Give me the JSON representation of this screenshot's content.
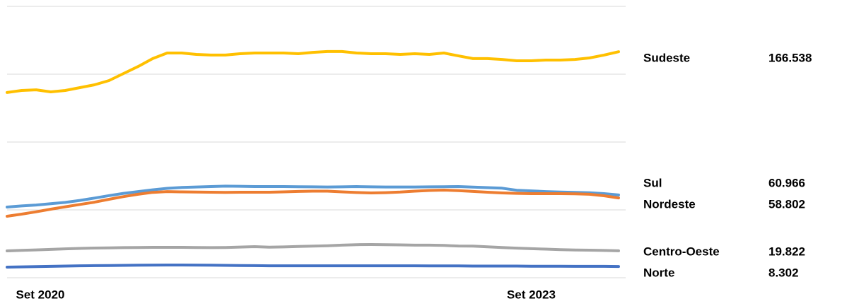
{
  "chart_data": {
    "type": "line",
    "categories": [
      "Set 2020",
      null,
      null,
      null,
      null,
      null,
      null,
      null,
      null,
      null,
      null,
      null,
      null,
      null,
      null,
      null,
      null,
      null,
      null,
      null,
      null,
      null,
      null,
      null,
      null,
      null,
      null,
      null,
      null,
      null,
      null,
      null,
      null,
      null,
      null,
      null,
      "Set 2023",
      null,
      null,
      null,
      null,
      null,
      null
    ],
    "ylim": [
      0,
      200
    ],
    "yticks": [
      0,
      50,
      100,
      150,
      200
    ],
    "grid": true,
    "series": [
      {
        "name": "Sudeste",
        "color": "#ffc000",
        "values": [
          136.5,
          138.0,
          138.5,
          137.0,
          138.0,
          140.1,
          142.2,
          145.3,
          150.5,
          155.7,
          161.5,
          165.6,
          165.6,
          164.6,
          164.1,
          164.1,
          165.1,
          165.6,
          165.6,
          165.6,
          165.1,
          166.1,
          166.7,
          166.7,
          165.6,
          165.1,
          165.1,
          164.6,
          165.1,
          164.6,
          165.6,
          163.5,
          161.5,
          161.5,
          160.9,
          159.9,
          159.9,
          160.4,
          160.4,
          160.9,
          162.0,
          164.1,
          166.538
        ]
      },
      {
        "name": "Sul",
        "color": "#5b9bd5",
        "values": [
          52.1,
          52.9,
          53.6,
          54.6,
          55.5,
          57.0,
          58.7,
          60.5,
          62.2,
          63.5,
          64.8,
          65.9,
          66.5,
          66.9,
          67.2,
          67.5,
          67.4,
          67.2,
          67.2,
          67.2,
          67.1,
          67.0,
          66.9,
          67.0,
          67.2,
          67.0,
          66.9,
          66.9,
          66.9,
          67.0,
          67.1,
          67.2,
          66.8,
          66.4,
          66.0,
          64.5,
          64.0,
          63.5,
          63.2,
          62.9,
          62.6,
          62.0,
          60.966
        ]
      },
      {
        "name": "Nordeste",
        "color": "#ed7d31",
        "values": [
          45.3,
          46.9,
          48.6,
          50.5,
          52.3,
          54.0,
          55.7,
          57.8,
          59.8,
          61.5,
          62.9,
          63.5,
          63.3,
          63.1,
          63.0,
          62.9,
          63.0,
          63.0,
          63.0,
          63.3,
          63.6,
          63.8,
          63.8,
          63.3,
          62.8,
          62.5,
          62.7,
          63.1,
          63.8,
          64.3,
          64.6,
          64.2,
          63.6,
          63.0,
          62.5,
          62.2,
          62.0,
          62.0,
          62.0,
          61.9,
          61.5,
          60.4,
          58.802
        ]
      },
      {
        "name": "Centro-Oeste",
        "color": "#a5a5a5",
        "values": [
          19.8,
          20.2,
          20.5,
          20.9,
          21.3,
          21.6,
          21.9,
          22.0,
          22.2,
          22.3,
          22.4,
          22.4,
          22.4,
          22.3,
          22.2,
          22.3,
          22.6,
          22.9,
          22.5,
          22.7,
          23.0,
          23.3,
          23.6,
          24.0,
          24.4,
          24.5,
          24.4,
          24.2,
          24.0,
          24.0,
          23.8,
          23.4,
          23.3,
          22.8,
          22.3,
          21.8,
          21.4,
          21.1,
          20.7,
          20.4,
          20.3,
          20.1,
          19.822
        ]
      },
      {
        "name": "Norte",
        "color": "#4472c4",
        "values": [
          7.8,
          8.0,
          8.2,
          8.4,
          8.6,
          8.8,
          8.9,
          9.0,
          9.1,
          9.2,
          9.3,
          9.4,
          9.4,
          9.3,
          9.2,
          9.1,
          9.0,
          8.9,
          8.8,
          8.8,
          8.8,
          8.8,
          8.8,
          8.8,
          8.8,
          8.8,
          8.8,
          8.8,
          8.8,
          8.7,
          8.7,
          8.7,
          8.6,
          8.6,
          8.6,
          8.6,
          8.5,
          8.5,
          8.5,
          8.4,
          8.4,
          8.4,
          8.302
        ]
      }
    ]
  }
}
